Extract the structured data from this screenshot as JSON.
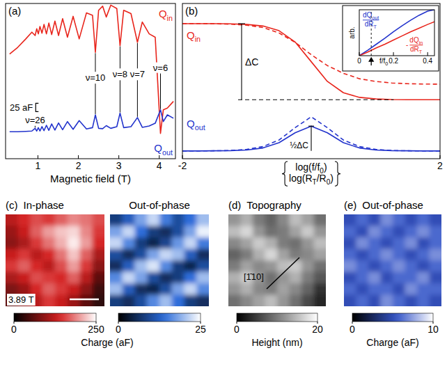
{
  "chart_data": [
    {
      "type": "line",
      "panel": "(a)",
      "x": [
        0.3,
        0.5,
        0.7,
        0.85,
        0.93,
        0.97,
        1.01,
        1.05,
        1.1,
        1.15,
        1.21,
        1.27,
        1.34,
        1.42,
        1.51,
        1.61,
        1.73,
        1.87,
        2.02,
        2.2,
        2.35,
        2.42,
        2.5,
        2.6,
        2.69,
        2.8,
        2.95,
        3.03,
        3.12,
        3.3,
        3.46,
        3.58,
        3.75,
        3.9,
        4.03,
        4.1,
        4.2,
        4.35
      ],
      "series": [
        {
          "name": [
            "Q",
            {
              "sub": "in"
            }
          ],
          "color": "#e8251c",
          "line_style": "solid",
          "values": [
            310,
            330,
            355,
            375,
            365,
            385,
            370,
            392,
            372,
            398,
            370,
            402,
            368,
            408,
            365,
            415,
            360,
            422,
            355,
            432,
            425,
            315,
            440,
            452,
            420,
            455,
            445,
            335,
            440,
            430,
            345,
            405,
            370,
            360,
            75,
            145,
            150,
            170
          ]
        },
        {
          "name": [
            "Q",
            {
              "sub": "out"
            }
          ],
          "color": "#2233cc",
          "line_style": "solid",
          "values": [
            80,
            80,
            81,
            82,
            90,
            82,
            92,
            82,
            95,
            83,
            99,
            84,
            103,
            85,
            106,
            86,
            110,
            87,
            113,
            88,
            92,
            130,
            90,
            89,
            98,
            90,
            95,
            135,
            92,
            95,
            122,
            93,
            97,
            105,
            145,
            110,
            130,
            120
          ]
        }
      ],
      "xlabel": "Magnetic field (T)",
      "xlim": [
        0.2,
        4.4
      ],
      "xticks": [
        1,
        2,
        3,
        4
      ],
      "ylim": [
        0,
        460
      ],
      "tick_labels": "x",
      "annotations": [
        {
          "text": "ν=26",
          "x": 0.93,
          "y": 115
        },
        {
          "text": "ν=10",
          "x": 2.42,
          "y": 240
        },
        {
          "text": "ν=8",
          "x": 3.03,
          "y": 250
        },
        {
          "text": "ν=7",
          "x": 3.46,
          "y": 250
        },
        {
          "text": "ν=6",
          "x": 4.03,
          "y": 270
        }
      ],
      "scale_bar": {
        "value": 25,
        "label": "25 aF"
      }
    },
    {
      "type": "line",
      "panel": "(b)",
      "x": [
        -2,
        -1.75,
        -1.5,
        -1.25,
        -1,
        -0.75,
        -0.5,
        -0.25,
        0,
        0.25,
        0.5,
        0.75,
        1,
        1.25,
        1.5,
        1.75,
        2
      ],
      "series": [
        {
          "name": [
            "Q",
            {
              "sub": "in"
            }
          ],
          "color": "#e8251c",
          "line_style": "solid",
          "values": [
            0.87,
            0.87,
            0.87,
            0.869,
            0.865,
            0.855,
            0.825,
            0.752,
            0.625,
            0.498,
            0.425,
            0.395,
            0.385,
            0.381,
            0.38,
            0.38,
            0.38
          ]
        },
        {
          "color": "#e8251c",
          "line_style": "dashed",
          "values": [
            0.87,
            0.87,
            0.869,
            0.867,
            0.86,
            0.845,
            0.81,
            0.75,
            0.67,
            0.6,
            0.55,
            0.515,
            0.498,
            0.488,
            0.483,
            0.481,
            0.48
          ]
        },
        {
          "name": [
            "Q",
            {
              "sub": "out"
            }
          ],
          "color": "#2233cc",
          "line_style": "solid",
          "values": [
            0.05,
            0.05,
            0.051,
            0.052,
            0.056,
            0.069,
            0.103,
            0.167,
            0.21,
            0.167,
            0.103,
            0.069,
            0.056,
            0.052,
            0.051,
            0.05,
            0.05
          ]
        },
        {
          "color": "#2233cc",
          "line_style": "dashed",
          "values": [
            0.05,
            0.05,
            0.051,
            0.053,
            0.06,
            0.078,
            0.12,
            0.2,
            0.27,
            0.2,
            0.12,
            0.078,
            0.06,
            0.053,
            0.051,
            0.05,
            0.05
          ]
        }
      ],
      "xlabel": [
        [
          "log(f/f",
          {
            "sub": "0"
          },
          ")"
        ],
        [
          "log(R",
          {
            "sub": "T"
          },
          "/R",
          {
            "sub": "0"
          },
          ")"
        ]
      ],
      "xlim": [
        -2,
        2
      ],
      "xticks": [
        -2,
        2
      ],
      "ylim": [
        0,
        1
      ],
      "tick_labels": "x",
      "annotations": [
        {
          "text": "ΔC"
        },
        {
          "text": "½ΔC"
        }
      ]
    },
    {
      "type": "line",
      "x": [
        0,
        0.05,
        0.1,
        0.15,
        0.2,
        0.25,
        0.3,
        0.35,
        0.4,
        0.44
      ],
      "series": [
        {
          "name": {
            "num": [
              "dQ",
              {
                "sub": "out"
              }
            ],
            "den": [
              "dR",
              {
                "sub": "T"
              }
            ]
          },
          "color": "#2233cc",
          "line_style": "solid",
          "values": [
            0,
            0.12,
            0.25,
            0.38,
            0.52,
            0.65,
            0.77,
            0.88,
            0.97,
            1.0
          ]
        },
        {
          "name": {
            "sign": "-",
            "num": [
              "dQ",
              {
                "sub": "in"
              }
            ],
            "den": [
              "dR",
              {
                "sub": "T"
              }
            ]
          },
          "color": "#e8251c",
          "line_style": "solid",
          "values": [
            0,
            0.08,
            0.17,
            0.25,
            0.34,
            0.43,
            0.52,
            0.6,
            0.68,
            0.74
          ]
        }
      ],
      "xlabel": [
        "f/f",
        {
          "sub": "0"
        }
      ],
      "ylabel": "arb.",
      "xlim": [
        0,
        0.44
      ],
      "xticks": [
        0,
        0.2,
        0.4
      ],
      "ylim": [
        0,
        1
      ],
      "tick_labels": "x",
      "reference_x": 0.07
    },
    {
      "type": "heatmap",
      "panel": "(c)",
      "images": [
        {
          "title": "In-phase",
          "color": "#d42020",
          "colorbar_range": [
            0,
            250
          ],
          "colorbar_ticks": [
            0,
            250
          ],
          "cells": [
            [
              120,
              140,
              160,
              150,
              170,
              190,
              180,
              160
            ],
            [
              100,
              130,
              170,
              200,
              220,
              230,
              190,
              150
            ],
            [
              90,
              110,
              150,
              180,
              210,
              240,
              200,
              140
            ],
            [
              130,
              150,
              120,
              140,
              180,
              220,
              170,
              110
            ],
            [
              150,
              170,
              140,
              120,
              160,
              200,
              150,
              90
            ],
            [
              110,
              130,
              160,
              150,
              140,
              170,
              120,
              60
            ],
            [
              80,
              100,
              140,
              170,
              150,
              130,
              90,
              40
            ],
            [
              60,
              90,
              120,
              150,
              130,
              100,
              60,
              30
            ]
          ]
        },
        {
          "title": "Out-of-phase",
          "color": "#2a6ad8",
          "colorbar_range": [
            0,
            25
          ],
          "colorbar_ticks": [
            0,
            25
          ],
          "cells": [
            [
              8,
              12,
              18,
              22,
              15,
              10,
              14,
              20
            ],
            [
              18,
              22,
              14,
              8,
              6,
              10,
              18,
              24
            ],
            [
              22,
              16,
              8,
              5,
              9,
              17,
              22,
              15
            ],
            [
              10,
              6,
              10,
              18,
              22,
              20,
              12,
              6
            ],
            [
              6,
              12,
              20,
              23,
              16,
              8,
              5,
              10
            ],
            [
              16,
              22,
              18,
              10,
              6,
              8,
              14,
              20
            ],
            [
              20,
              12,
              6,
              5,
              10,
              18,
              22,
              16
            ],
            [
              8,
              6,
              10,
              16,
              20,
              14,
              8,
              6
            ]
          ]
        }
      ],
      "colorbar_label": "Charge (aF)",
      "field_label": "3.89 T"
    },
    {
      "type": "heatmap",
      "panel": "(d)",
      "images": [
        {
          "title": "Topography",
          "color": "#888888",
          "colorbar_range": [
            0,
            20
          ],
          "colorbar_ticks": [
            0,
            20
          ],
          "cells": [
            [
              12,
              14,
              10,
              8,
              11,
              15,
              13,
              9
            ],
            [
              15,
              17,
              12,
              9,
              10,
              13,
              16,
              12
            ],
            [
              11,
              13,
              16,
              14,
              10,
              9,
              12,
              15
            ],
            [
              8,
              10,
              14,
              17,
              13,
              10,
              11,
              13
            ],
            [
              10,
              13,
              11,
              12,
              15,
              16,
              12,
              9
            ],
            [
              14,
              16,
              12,
              9,
              12,
              14,
              10,
              7
            ],
            [
              12,
              14,
              11,
              10,
              13,
              11,
              8,
              4
            ],
            [
              9,
              11,
              13,
              15,
              12,
              9,
              6,
              3
            ]
          ]
        }
      ],
      "colorbar_label": "Height (nm)",
      "direction_label": "[1̄10]"
    },
    {
      "type": "heatmap",
      "panel": "(e)",
      "images": [
        {
          "title": "Out-of-phase",
          "color": "#3656c8",
          "colorbar_range": [
            0,
            10
          ],
          "colorbar_ticks": [
            0,
            10
          ],
          "cells": [
            [
              5,
              6,
              5,
              7,
              6,
              5,
              6,
              5
            ],
            [
              6,
              5,
              7,
              6,
              5,
              6,
              7,
              6
            ],
            [
              5,
              7,
              6,
              5,
              6,
              7,
              5,
              6
            ],
            [
              6,
              5,
              6,
              7,
              6,
              5,
              6,
              7
            ],
            [
              7,
              6,
              5,
              6,
              7,
              6,
              5,
              6
            ],
            [
              5,
              6,
              7,
              5,
              6,
              6,
              7,
              5
            ],
            [
              6,
              5,
              6,
              6,
              5,
              7,
              6,
              6
            ],
            [
              5,
              6,
              5,
              7,
              6,
              5,
              6,
              5
            ]
          ]
        }
      ],
      "colorbar_label": "Charge (aF)"
    }
  ]
}
